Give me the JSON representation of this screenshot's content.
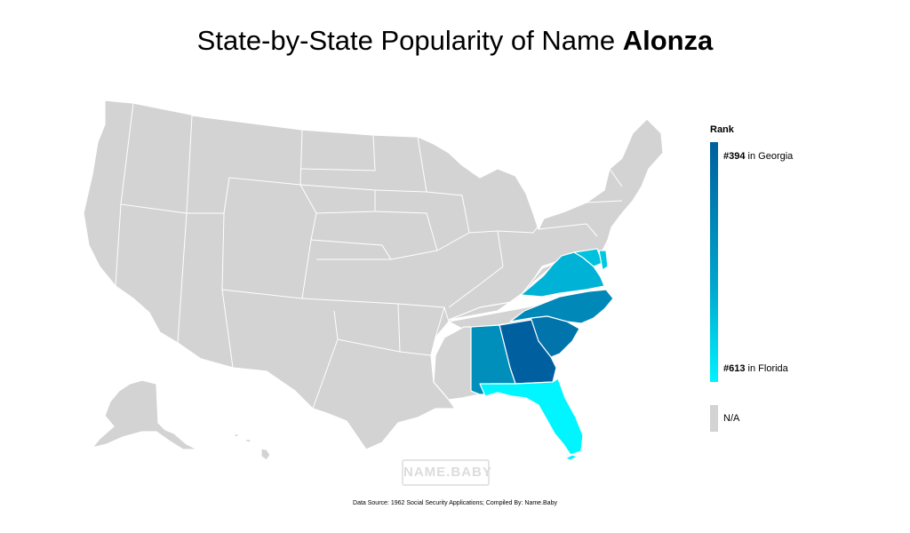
{
  "title": {
    "prefix": "State-by-State Popularity of Name ",
    "name": "Alonza"
  },
  "legend": {
    "heading": "Rank",
    "top": {
      "rank": "#394",
      "text": " in Georgia"
    },
    "bottom": {
      "rank": "#613",
      "text": " in Florida"
    },
    "na_label": "N/A",
    "gradient_colors": [
      "#005f9e",
      "#00a6cf",
      "#00f2ff"
    ],
    "na_color": "#d3d3d3"
  },
  "watermark": "NAME.BABY",
  "source": "Data Source: 1962 Social Security Applications; Compiled By: Name.Baby",
  "states": [
    {
      "name": "Georgia",
      "color": "#00609f"
    },
    {
      "name": "South Carolina",
      "color": "#0074ab"
    },
    {
      "name": "North Carolina",
      "color": "#0088b8"
    },
    {
      "name": "Alabama",
      "color": "#008ebb"
    },
    {
      "name": "Virginia",
      "color": "#00b2d5"
    },
    {
      "name": "Florida",
      "color": "#00f5ff"
    },
    {
      "name": "Maryland",
      "color": "#00c2de"
    },
    {
      "name": "Delaware",
      "color": "#00c9e3"
    }
  ]
}
